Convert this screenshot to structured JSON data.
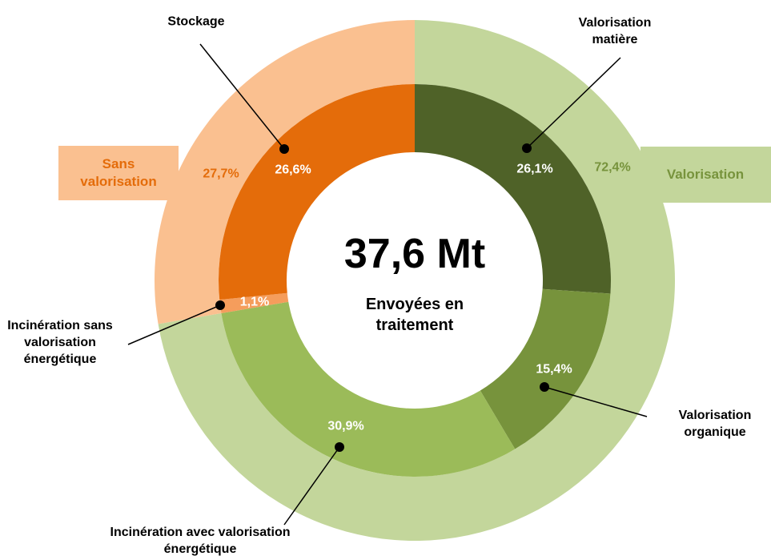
{
  "chart_data": {
    "type": "nested-donut",
    "center_value": "37,6 Mt",
    "center_label": "Envoyées en traitement",
    "inner": {
      "categories": [
        "Valorisation matière",
        "Valorisation organique",
        "Incinération avec valorisation énergétique",
        "Incinération sans valorisation énergétique",
        "Stockage"
      ],
      "values": [
        26.1,
        15.4,
        30.9,
        1.1,
        26.6
      ],
      "value_labels": [
        "26,1%",
        "15,4%",
        "30,9%",
        "1,1%",
        "26,6%"
      ],
      "colors": [
        "#4f6228",
        "#77933c",
        "#9bbb59",
        "#f59d5c",
        "#e46c0a"
      ]
    },
    "outer": {
      "categories": [
        "Valorisation",
        "Sans valorisation"
      ],
      "values": [
        72.4,
        27.7
      ],
      "value_labels": [
        "72,4%",
        "27,7%"
      ],
      "colors": [
        "#c3d69b",
        "#fac090"
      ],
      "label_colors": [
        "#77933c",
        "#e46c0a"
      ]
    }
  }
}
